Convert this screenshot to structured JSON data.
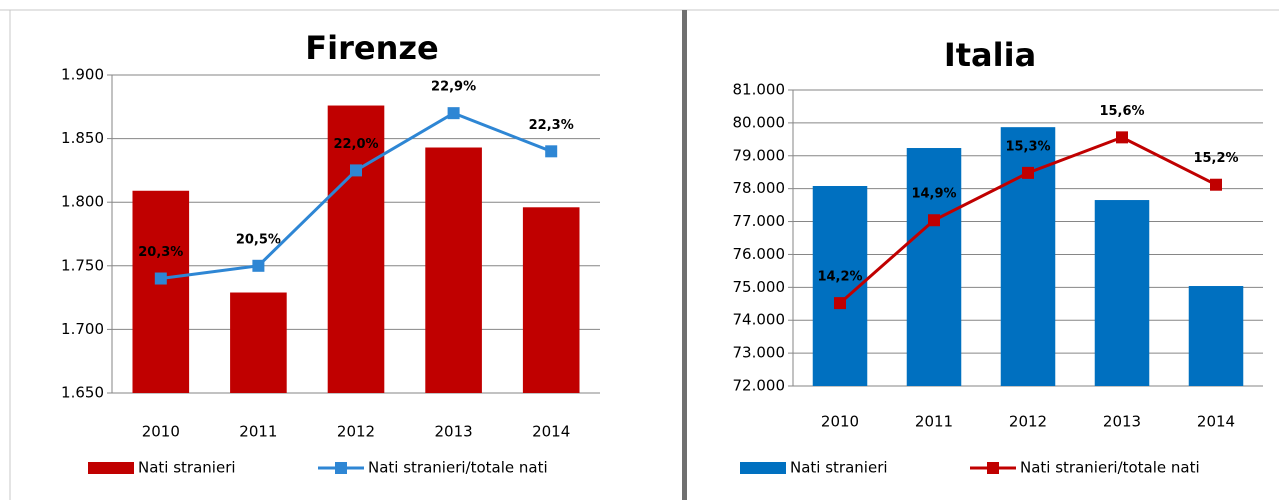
{
  "chart_data": [
    {
      "type": "combo",
      "title": "Firenze",
      "categories": [
        "2010",
        "2011",
        "2012",
        "2013",
        "2014"
      ],
      "series": [
        {
          "name": "Nati stranieri",
          "type": "bar",
          "color": "#c00000",
          "values": [
            1809,
            1729,
            1876,
            1843,
            1796
          ]
        },
        {
          "name": "Nati stranieri/totale nati",
          "type": "line",
          "axis": "y2",
          "color": "#2e86d4",
          "values": [
            20.3,
            20.5,
            22.0,
            22.9,
            22.3
          ],
          "value_labels": [
            "20,3%",
            "20,5%",
            "22,0%",
            "22,9%",
            "22,3%"
          ]
        }
      ],
      "ylim": [
        1650,
        1900
      ],
      "yticks": [
        {
          "value": 1650,
          "label": "1.650"
        },
        {
          "value": 1700,
          "label": "1.700"
        },
        {
          "value": 1750,
          "label": "1.750"
        },
        {
          "value": 1800,
          "label": "1.800"
        },
        {
          "value": 1850,
          "label": "1.850"
        },
        {
          "value": 1900,
          "label": "1.900"
        }
      ],
      "y2lim": [
        18.5,
        23.5
      ],
      "grid": true,
      "legend": "bottom"
    },
    {
      "type": "combo",
      "title": "Italia",
      "categories": [
        "2010",
        "2011",
        "2012",
        "2013",
        "2014"
      ],
      "series": [
        {
          "name": "Nati stranieri",
          "type": "bar",
          "color": "#0070c0",
          "values": [
            78081,
            79236,
            79870,
            77654,
            75040
          ]
        },
        {
          "name": "Nati stranieri/totale nati",
          "type": "line",
          "axis": "y2",
          "color": "#c00000",
          "values": [
            14.2,
            14.9,
            15.3,
            15.6,
            15.2
          ],
          "value_labels": [
            "14,2%",
            "14,9%",
            "15,3%",
            "15,6%",
            "15,2%"
          ]
        }
      ],
      "ylim": [
        72000,
        81000
      ],
      "yticks": [
        {
          "value": 72000,
          "label": "72.000"
        },
        {
          "value": 73000,
          "label": "73.000"
        },
        {
          "value": 74000,
          "label": "74.000"
        },
        {
          "value": 75000,
          "label": "75.000"
        },
        {
          "value": 76000,
          "label": "76.000"
        },
        {
          "value": 77000,
          "label": "77.000"
        },
        {
          "value": 78000,
          "label": "78.000"
        },
        {
          "value": 79000,
          "label": "79.000"
        },
        {
          "value": 80000,
          "label": "80.000"
        },
        {
          "value": 81000,
          "label": "81.000"
        }
      ],
      "y2lim": [
        13.5,
        16.0
      ],
      "grid": true,
      "legend": "bottom"
    }
  ]
}
